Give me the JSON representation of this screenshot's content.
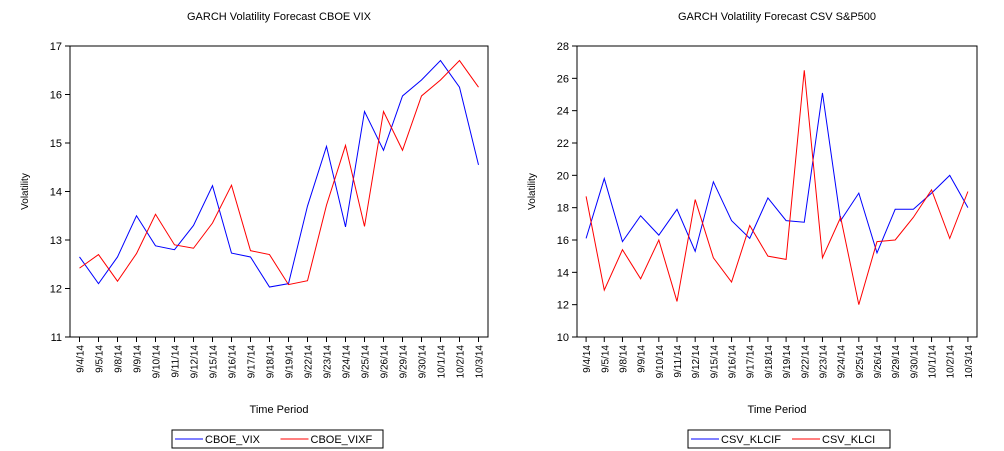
{
  "chart_data": [
    {
      "type": "line",
      "title": "GARCH Volatility Forecast CBOE VIX",
      "x_label": "Time Period",
      "y_label": "Volatility",
      "categories": [
        "9/4/14",
        "9/5/14",
        "9/8/14",
        "9/9/14",
        "9/10/14",
        "9/11/14",
        "9/12/14",
        "9/15/14",
        "9/16/14",
        "9/17/14",
        "9/18/14",
        "9/19/14",
        "9/22/14",
        "9/23/14",
        "9/24/14",
        "9/25/14",
        "9/26/14",
        "9/29/14",
        "9/30/14",
        "10/1/14",
        "10/2/14",
        "10/3/14"
      ],
      "series": [
        {
          "name": "CBOE_VIX",
          "color": "#0000ff",
          "values": [
            12.65,
            12.1,
            12.65,
            13.5,
            12.88,
            12.8,
            13.3,
            14.12,
            12.73,
            12.65,
            12.03,
            12.1,
            13.7,
            14.93,
            13.27,
            15.65,
            14.85,
            15.97,
            16.3,
            16.7,
            16.15,
            14.55
          ]
        },
        {
          "name": "CBOE_VIXF",
          "color": "#ff0000",
          "values": [
            12.42,
            12.7,
            12.15,
            12.72,
            13.53,
            12.9,
            12.83,
            13.35,
            14.13,
            12.78,
            12.7,
            12.08,
            12.16,
            13.72,
            14.95,
            13.28,
            15.65,
            14.85,
            15.97,
            16.3,
            16.7,
            16.15
          ]
        }
      ],
      "ylim": [
        11,
        17
      ],
      "yticks": [
        11,
        12,
        13,
        14,
        15,
        16,
        17
      ]
    },
    {
      "type": "line",
      "title": "GARCH Volatility Forecast CSV S&P500",
      "x_label": "Time Period",
      "y_label": "Volatility",
      "categories": [
        "9/4/14",
        "9/5/14",
        "9/8/14",
        "9/9/14",
        "9/10/14",
        "9/11/14",
        "9/12/14",
        "9/15/14",
        "9/16/14",
        "9/17/14",
        "9/18/14",
        "9/19/14",
        "9/22/14",
        "9/23/14",
        "9/24/14",
        "9/25/14",
        "9/26/14",
        "9/29/14",
        "9/30/14",
        "10/1/14",
        "10/2/14",
        "10/3/14"
      ],
      "series": [
        {
          "name": "CSV_KLCIF",
          "color": "#0000ff",
          "values": [
            16.1,
            19.8,
            15.9,
            17.5,
            16.3,
            17.9,
            15.3,
            19.6,
            17.2,
            16.1,
            18.6,
            17.2,
            17.1,
            25.1,
            17.2,
            18.9,
            15.2,
            17.9,
            17.9,
            18.9,
            20.0,
            18.0
          ]
        },
        {
          "name": "CSV_KLCI",
          "color": "#ff0000",
          "values": [
            18.7,
            12.9,
            15.4,
            13.6,
            16.0,
            12.2,
            18.5,
            14.9,
            13.4,
            16.9,
            15.0,
            14.8,
            26.5,
            14.9,
            17.4,
            12.0,
            15.9,
            16.0,
            17.4,
            19.1,
            16.1,
            19.0
          ]
        }
      ],
      "ylim": [
        10,
        28
      ],
      "yticks": [
        10,
        12,
        14,
        16,
        18,
        20,
        22,
        24,
        26,
        28
      ]
    }
  ]
}
